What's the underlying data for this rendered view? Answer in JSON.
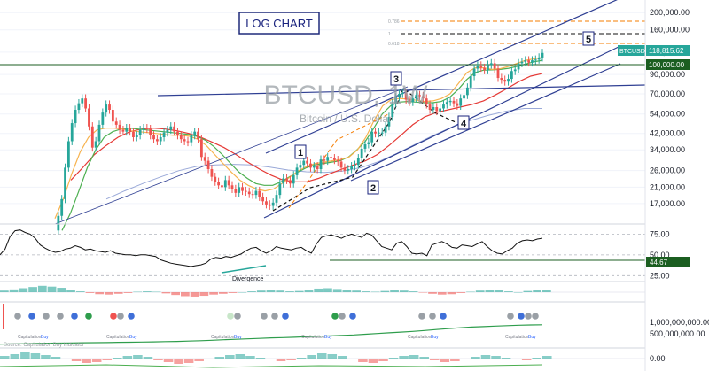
{
  "header": {
    "badge": "LOG CHART",
    "symbol": "BTCUSD, 1W",
    "subtitle": "Bitcoin / U.S. Dollar"
  },
  "colors": {
    "up": "#26a69a",
    "down": "#ef5350",
    "channel": "#2f3f93",
    "fib": "#f57c00",
    "ema_fast": "#f7b34f",
    "ema_mid": "#4caf50",
    "ema_slow": "#e53935",
    "ema_long": "#9aa9d8",
    "current_price_bg": "#26a69a",
    "level_bg": "#1b5e20"
  },
  "chart_data": [
    {
      "type": "candlestick",
      "title": "BTCUSD, 1W",
      "subtitle": "Bitcoin / U.S. Dollar",
      "scale": "log",
      "ylim": [
        13500,
        230000
      ],
      "y_ticks": [
        200000,
        160000,
        120000,
        90000,
        70000,
        54000,
        42000,
        34000,
        26000,
        21000,
        17000
      ],
      "y_tick_labels": [
        "200,000.00",
        "160,000.00",
        "120,000.00",
        "90,000.00",
        "70,000.00",
        "54,000.00",
        "42,000.00",
        "34,000.00",
        "26,000.00",
        "21,000.00",
        "17,000.00"
      ],
      "current_price": {
        "label": "BTCUSD",
        "value": 118815.62,
        "text": "118,815.62"
      },
      "horizontal_level": {
        "value": 100000,
        "text": "100,000.00"
      },
      "fib_levels": [
        {
          "label": "0.786",
          "value": 175000
        },
        {
          "label": "1",
          "value": 147000
        },
        {
          "label": "0.618",
          "value": 128000
        }
      ],
      "wave_labels": [
        {
          "label": "1",
          "price": 36500
        },
        {
          "label": "2",
          "price": 24500
        },
        {
          "label": "3",
          "price": 74000
        },
        {
          "label": "4",
          "price": 49500
        },
        {
          "label": "5",
          "price": 140000
        }
      ],
      "close_series": [
        12000,
        14500,
        18000,
        27000,
        38000,
        48000,
        57000,
        62000,
        66000,
        58000,
        46000,
        35000,
        38000,
        47000,
        55000,
        61000,
        57000,
        49000,
        47000,
        44000,
        43000,
        45000,
        43000,
        40000,
        41000,
        44000,
        45000,
        44500,
        41000,
        39000,
        38000,
        40000,
        42500,
        44000,
        46000,
        43000,
        41000,
        39000,
        38000,
        37500,
        41000,
        43000,
        39000,
        31000,
        29500,
        26500,
        24000,
        22500,
        21500,
        21000,
        23000,
        21500,
        20500,
        19500,
        21000,
        20000,
        19800,
        19200,
        19000,
        20000,
        18500,
        17500,
        16800,
        16500,
        17200,
        19000,
        22000,
        23500,
        23000,
        22000,
        24500,
        27000,
        28000,
        29500,
        28500,
        27000,
        27500,
        26500,
        30000,
        29500,
        31000,
        30500,
        29800,
        29200,
        27000,
        26000,
        26500,
        27500,
        28000,
        30500,
        34500,
        36500,
        37500,
        43000,
        42000,
        42500,
        42500,
        46000,
        52000,
        62000,
        67000,
        70000,
        71000,
        65000,
        63000,
        66000,
        69000,
        68000,
        66000,
        61000,
        57000,
        59000,
        56000,
        58000,
        61000,
        63000,
        64000,
        62000,
        60000,
        66000,
        69000,
        76000,
        88000,
        97000,
        101000,
        98000,
        95000,
        102000,
        104000,
        97000,
        86000,
        84000,
        82000,
        85000,
        94000,
        96000,
        104000,
        106000,
        108000,
        105000,
        108000,
        109000,
        112000,
        118815.62
      ],
      "ema_fast": [
        14000,
        18000,
        25000,
        33000,
        40000,
        44000,
        45000,
        45000,
        44500,
        43500,
        43000,
        42500,
        42000,
        41500,
        41000,
        41000,
        40500,
        39000,
        36000,
        32000,
        28500,
        25500,
        23000,
        21500,
        20500,
        20000,
        20500,
        22000,
        24000,
        26000,
        27500,
        28500,
        29000,
        29500,
        30000,
        31000,
        34000,
        40000,
        50000,
        60000,
        65000,
        66000,
        65500,
        64500,
        63500,
        64000,
        66000,
        70000,
        80000,
        92000,
        98000,
        98000,
        96000,
        97000,
        100000,
        104000,
        108000,
        110000,
        112000
      ],
      "ema_mid": [
        12000,
        15000,
        20000,
        27000,
        34000,
        40000,
        43000,
        44500,
        45000,
        44500,
        44000,
        43500,
        43000,
        42500,
        42000,
        41500,
        40500,
        38500,
        35500,
        32000,
        28500,
        25500,
        23500,
        22000,
        21500,
        21500,
        22500,
        24000,
        25500,
        27000,
        28000,
        28500,
        29000,
        29500,
        31000,
        34000,
        38000,
        45000,
        54000,
        60000,
        63000,
        63500,
        63000,
        62500,
        62500,
        63500,
        67000,
        74000,
        84000,
        92000,
        95000,
        95500,
        96000,
        97500,
        100000,
        103000,
        106000,
        108000
      ],
      "ema_slow": [
        23000,
        27000,
        32000,
        36000,
        40000,
        43000,
        44500,
        45000,
        44500,
        43500,
        42000,
        40000,
        37500,
        35000,
        32000,
        29000,
        26500,
        24500,
        23000,
        22500,
        22500,
        23500,
        25000,
        26500,
        28000,
        29500,
        32000,
        36000,
        41000,
        47000,
        52000,
        55000,
        57000,
        59000,
        61000,
        64000,
        69000,
        75000,
        82000,
        88000,
        91000
      ],
      "ema_long": [
        18000,
        20000,
        22000,
        24000,
        26000,
        27500,
        28000,
        28200,
        28000,
        27200,
        26200,
        25600,
        25400,
        25800,
        27000,
        29200,
        32500,
        36500,
        41000,
        45500,
        49500,
        53000,
        56000,
        58000,
        58000
      ]
    },
    {
      "type": "line",
      "title": "RSI",
      "ylim": [
        20,
        85
      ],
      "y_ticks": [
        75,
        50,
        25
      ],
      "y_tick_labels": [
        "75.00",
        "50.00",
        "25.00"
      ],
      "current_value": {
        "value": 44.67,
        "text": "44.67"
      },
      "annotation": "Divergence",
      "values": [
        50,
        57,
        72,
        79,
        80,
        77,
        75,
        70,
        62,
        58,
        55,
        53,
        54,
        57,
        58,
        61,
        59,
        56,
        57,
        55,
        54,
        53,
        55,
        52,
        51,
        50,
        50,
        49,
        50,
        50,
        49,
        48,
        44,
        42,
        40,
        39,
        38,
        37,
        36,
        37,
        38,
        40,
        45,
        47,
        46,
        48,
        47,
        49,
        51,
        55,
        58,
        59,
        55,
        52,
        55,
        60,
        58,
        57,
        56,
        58,
        59,
        55,
        52,
        63,
        71,
        73,
        74,
        72,
        70,
        73,
        75,
        73,
        71,
        76,
        74,
        67,
        60,
        58,
        56,
        64,
        66,
        60,
        52,
        51,
        52,
        49,
        62,
        64,
        66,
        63,
        59,
        58,
        62,
        61,
        60,
        63,
        66,
        60,
        55,
        52,
        51,
        55,
        58,
        64,
        67,
        68,
        67,
        69,
        70
      ]
    },
    {
      "type": "bar",
      "title": "MACD",
      "ylim": [
        -1,
        1
      ],
      "values": [
        0.2,
        0.35,
        0.5,
        0.65,
        0.8,
        0.7,
        0.55,
        0.3,
        0.1,
        -0.1,
        -0.25,
        -0.3,
        -0.2,
        -0.1,
        0.05,
        0.1,
        0.05,
        -0.15,
        -0.35,
        -0.5,
        -0.55,
        -0.45,
        -0.3,
        -0.2,
        -0.1,
        0.0,
        0.1,
        0.2,
        0.25,
        0.2,
        0.1,
        0.15,
        0.3,
        0.45,
        0.5,
        0.4,
        0.3,
        0.2,
        0.1,
        0.05,
        0.15,
        0.25,
        0.2,
        0.1,
        -0.05,
        -0.2,
        -0.3,
        -0.25,
        -0.1,
        0.05,
        0.2,
        0.3,
        0.25,
        0.1,
        0.0,
        0.15,
        0.25,
        0.3
      ]
    },
    {
      "type": "line",
      "title": "Capitulation",
      "ylim": [
        0,
        1800000000
      ],
      "y_ticks": [
        1000000000,
        500000000
      ],
      "y_tick_labels": [
        "1,000,000,000.00",
        "500,000,000.00"
      ],
      "marker_text_1": "Capitulation",
      "marker_text_2": "Buy",
      "legend_text": "Source: Capitulation Buy Indicator",
      "values": [
        50000000,
        60000000,
        70000000,
        80000000,
        90000000,
        95000000,
        100000000,
        110000000,
        115000000,
        120000000,
        130000000,
        135000000,
        140000000,
        150000000,
        160000000,
        170000000,
        185000000,
        200000000,
        220000000,
        240000000,
        260000000,
        280000000,
        300000000,
        320000000,
        335000000,
        350000000,
        370000000,
        390000000,
        410000000,
        430000000,
        450000000,
        480000000,
        510000000,
        540000000,
        570000000,
        600000000,
        640000000,
        680000000,
        720000000,
        760000000,
        790000000,
        810000000,
        830000000,
        850000000,
        870000000,
        880000000,
        890000000
      ]
    },
    {
      "type": "bar",
      "title": "Oscillator",
      "ylim": [
        -1,
        1
      ],
      "y_ticks": [
        0
      ],
      "y_tick_labels": [
        "0.00"
      ],
      "values": [
        0.3,
        0.5,
        0.7,
        0.6,
        0.4,
        0.2,
        -0.1,
        -0.3,
        -0.5,
        -0.4,
        -0.2,
        0.1,
        0.3,
        0.4,
        0.2,
        -0.2,
        -0.4,
        -0.6,
        -0.5,
        -0.3,
        -0.1,
        0.2,
        0.4,
        0.5,
        0.3,
        0.1,
        -0.1,
        -0.3,
        -0.2,
        0.1,
        0.4,
        0.6,
        0.5,
        0.3,
        -0.1,
        -0.4,
        -0.5,
        -0.3,
        0.1,
        0.3,
        0.4,
        0.2,
        -0.2,
        -0.4,
        -0.3,
        0.0,
        0.2,
        0.4,
        0.3,
        0.1,
        -0.1,
        -0.2,
        0.1,
        0.3
      ]
    }
  ]
}
